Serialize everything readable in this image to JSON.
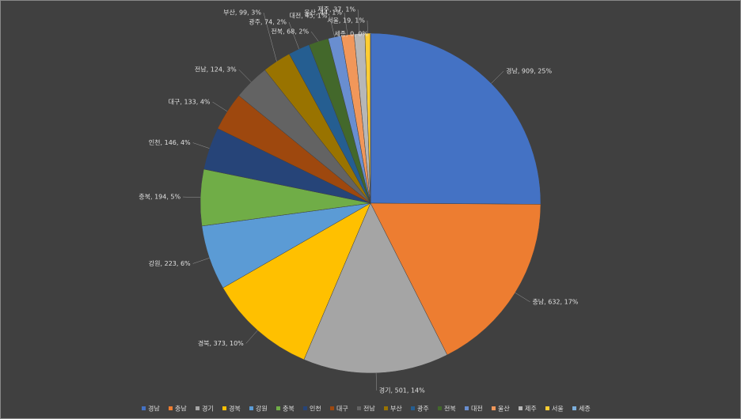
{
  "chart_data": {
    "type": "pie",
    "categories": [
      "경남",
      "충남",
      "경기",
      "경북",
      "강원",
      "충북",
      "인천",
      "대구",
      "전남",
      "부산",
      "광주",
      "전북",
      "대전",
      "울산",
      "제주",
      "서울",
      "세종"
    ],
    "values": [
      909,
      632,
      501,
      373,
      223,
      194,
      146,
      133,
      124,
      99,
      74,
      68,
      45,
      44,
      37,
      19,
      0
    ],
    "value_labels": [
      "경남, 909, 25%",
      "충남, 632, 17%",
      "경기, 501, 14%",
      "경북, 373, 10%",
      "강원, 223, 6%",
      "충북, 194, 5%",
      "인천, 146, 4%",
      "대구, 133, 4%",
      "전남, 124, 3%",
      "부산, 99, 3%",
      "광주, 74, 2%",
      "전북, 68, 2%",
      "대전, 45, 1%",
      "울산, 44, 1%",
      "제주, 37, 1%",
      "서울, 19, 1%",
      "세종, 0, 0%"
    ],
    "colors": [
      "#4472c4",
      "#ed7d31",
      "#a5a5a5",
      "#ffc000",
      "#5b9bd5",
      "#70ad47",
      "#264478",
      "#9e480e",
      "#636363",
      "#997300",
      "#255e91",
      "#43682b",
      "#698ed0",
      "#f1975a",
      "#b7b7b7",
      "#ffcd33",
      "#7cafdd"
    ],
    "legend": "bottom"
  }
}
